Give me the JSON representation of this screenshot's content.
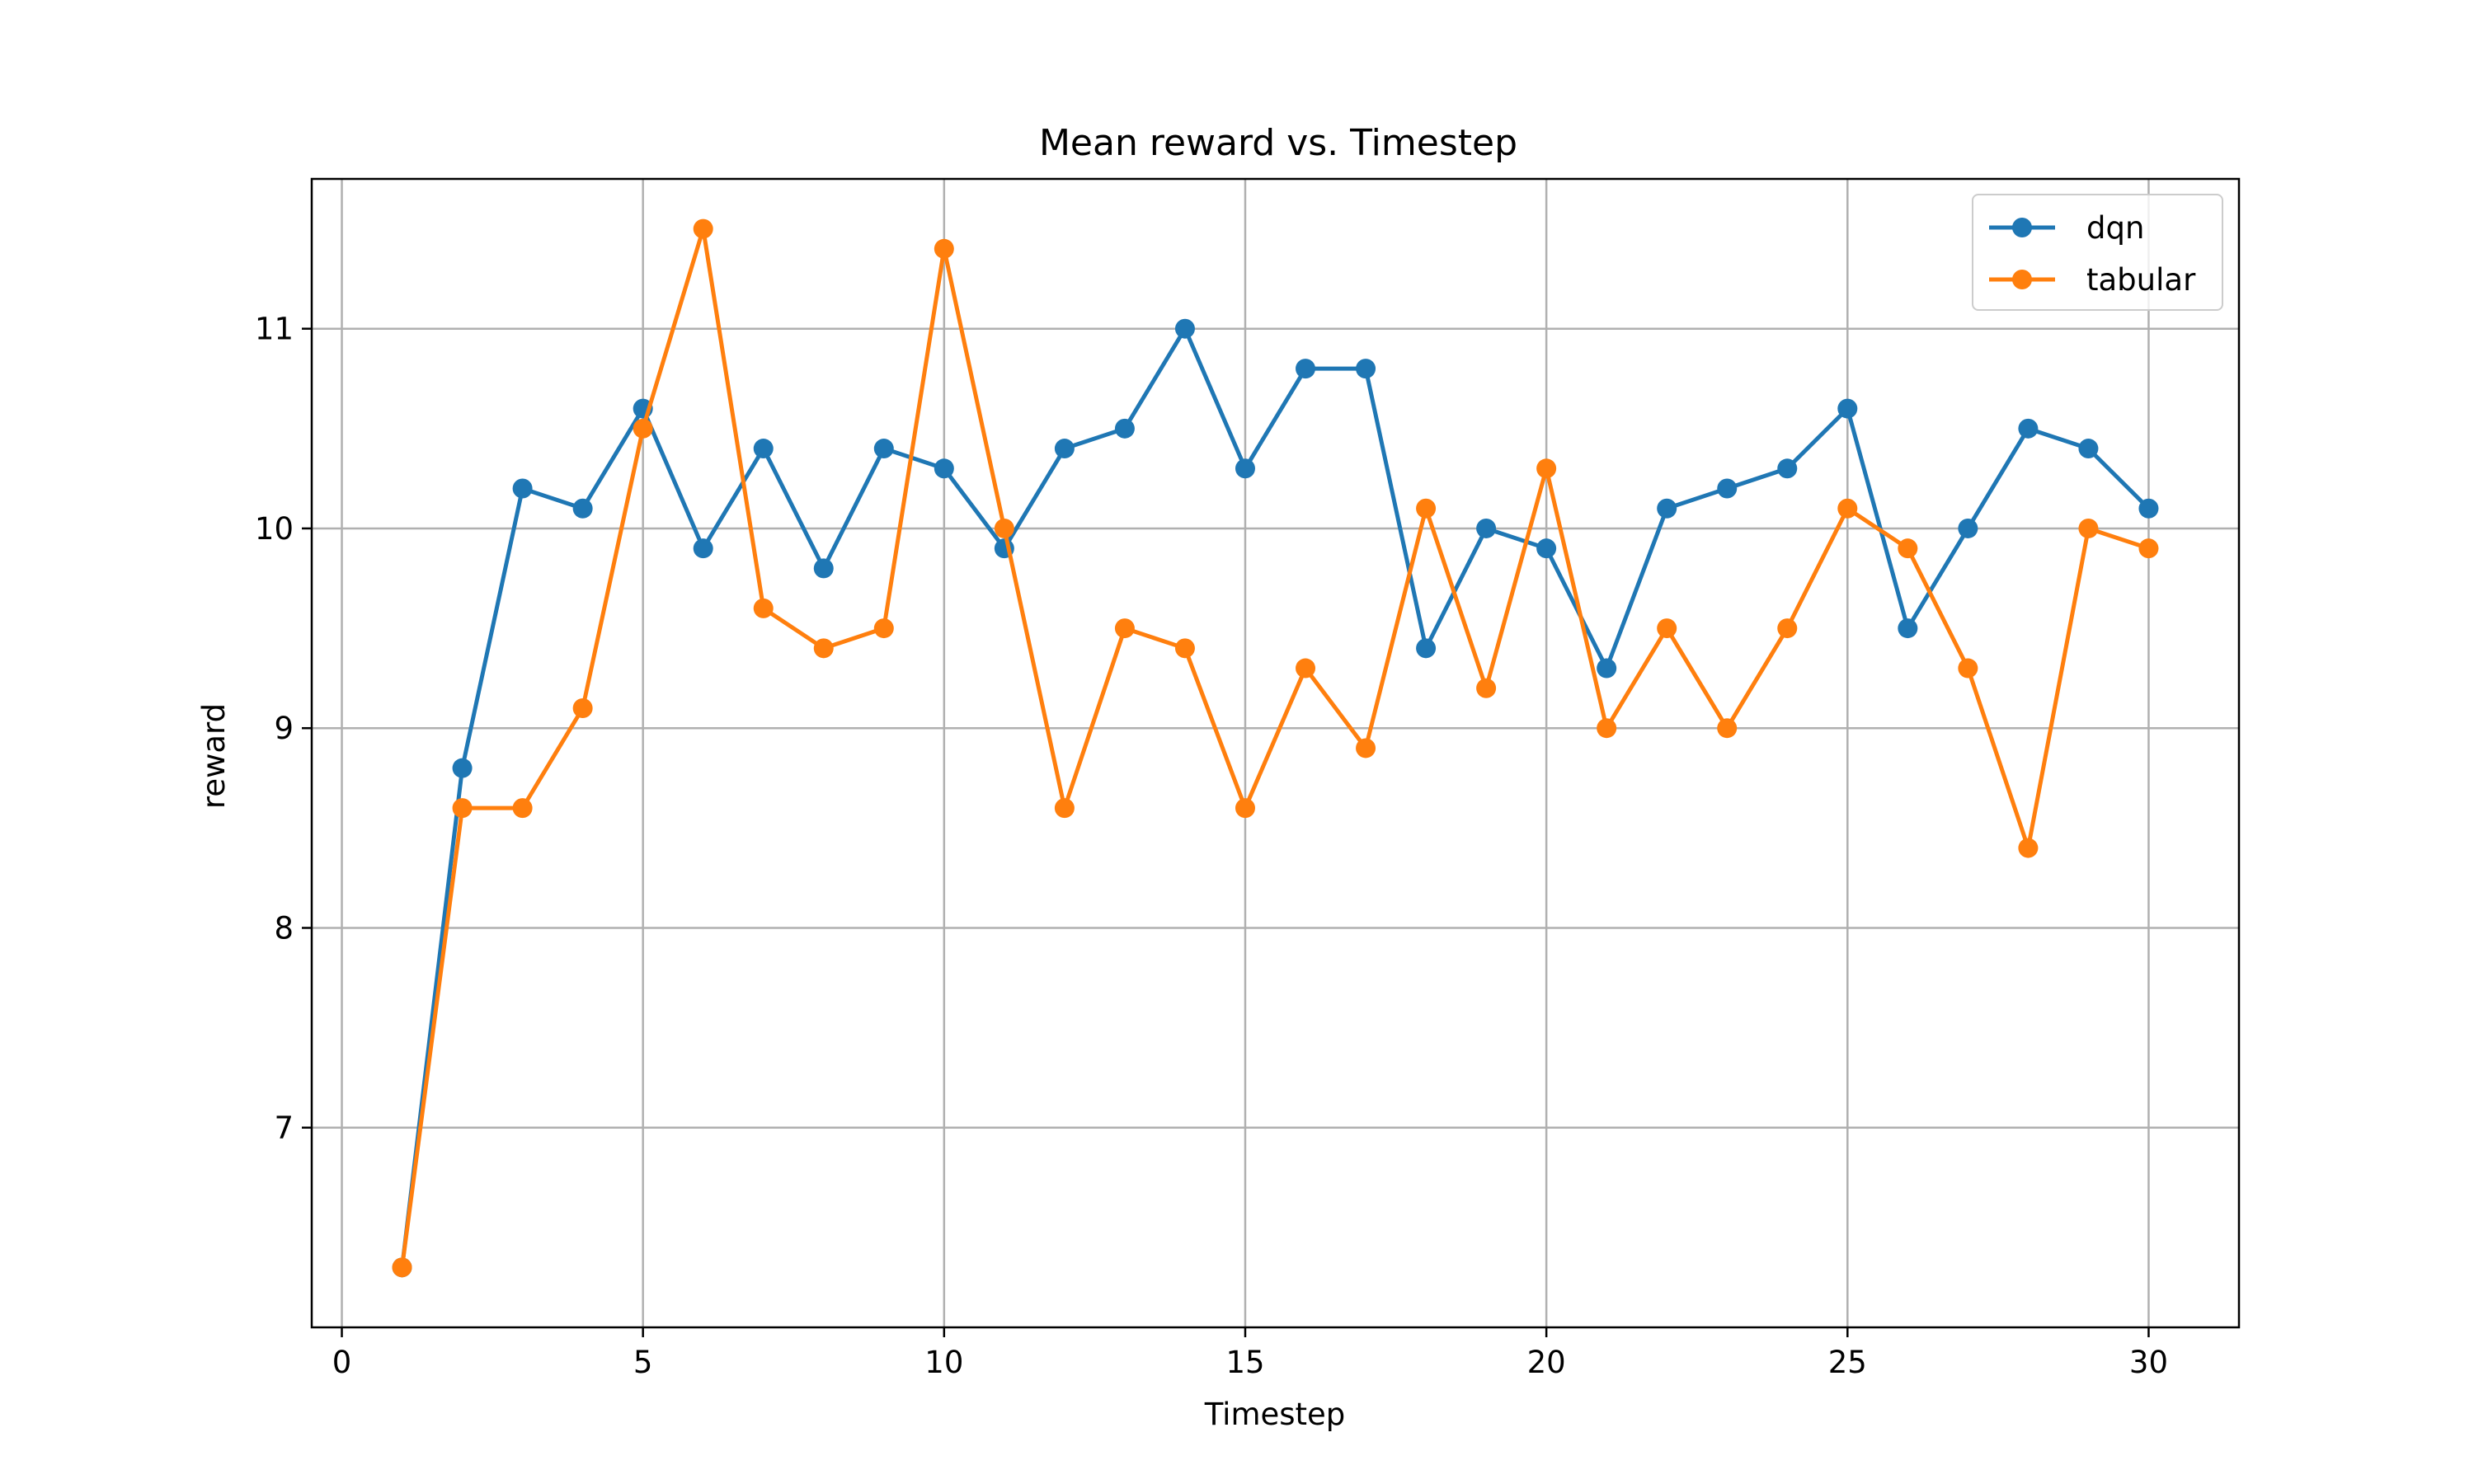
{
  "chart_data": {
    "type": "line",
    "title": "Mean reward vs. Timestep",
    "xlabel": "Timestep",
    "ylabel": "reward",
    "xlim": [
      -0.5,
      31.5
    ],
    "ylim": [
      6.0,
      11.75
    ],
    "xticks": [
      0,
      5,
      10,
      15,
      20,
      25,
      30
    ],
    "yticks": [
      7,
      8,
      9,
      10,
      11
    ],
    "grid": true,
    "legend_position": "top-right",
    "markers": true,
    "x": [
      1,
      2,
      3,
      4,
      5,
      6,
      7,
      8,
      9,
      10,
      11,
      12,
      13,
      14,
      15,
      16,
      17,
      18,
      19,
      20,
      21,
      22,
      23,
      24,
      25,
      26,
      27,
      28,
      29,
      30
    ],
    "series": [
      {
        "name": "dqn",
        "color": "#1f77b4",
        "values": [
          6.3,
          8.8,
          10.2,
          10.1,
          10.6,
          9.9,
          10.4,
          9.8,
          10.4,
          10.3,
          9.9,
          10.4,
          10.5,
          11.0,
          10.3,
          10.8,
          10.8,
          9.4,
          10.0,
          9.9,
          9.3,
          10.1,
          10.2,
          10.3,
          10.6,
          9.5,
          10.0,
          10.5,
          10.4,
          10.1
        ]
      },
      {
        "name": "tabular",
        "color": "#ff7f0e",
        "values": [
          6.3,
          8.6,
          8.6,
          9.1,
          10.5,
          11.5,
          9.6,
          9.4,
          9.5,
          11.4,
          10.0,
          8.6,
          9.5,
          9.4,
          8.6,
          9.3,
          8.9,
          10.1,
          9.2,
          10.3,
          9.0,
          9.5,
          9.0,
          9.5,
          10.1,
          9.9,
          9.3,
          8.4,
          10.0,
          9.9
        ]
      }
    ]
  }
}
